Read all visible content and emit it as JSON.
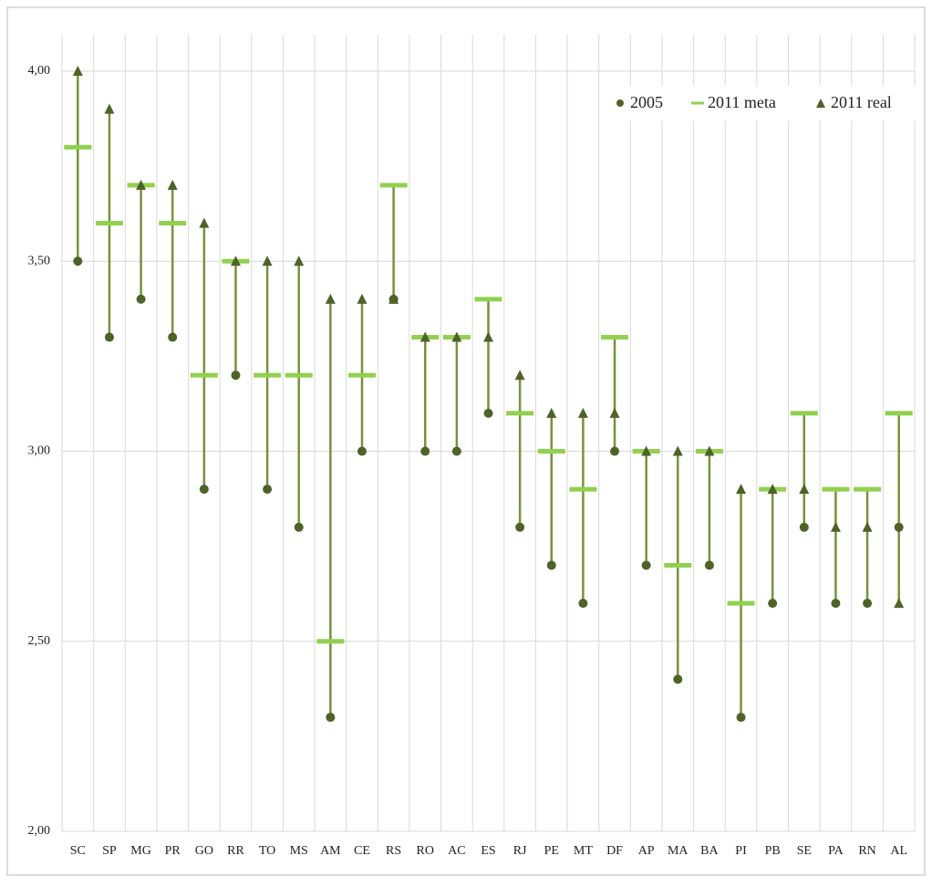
{
  "chart_data": {
    "type": "range",
    "categories": [
      "SC",
      "SP",
      "MG",
      "PR",
      "GO",
      "RR",
      "TO",
      "MS",
      "AM",
      "CE",
      "RS",
      "RO",
      "AC",
      "ES",
      "RJ",
      "PE",
      "MT",
      "DF",
      "AP",
      "MA",
      "BA",
      "PI",
      "PB",
      "SE",
      "PA",
      "RN",
      "AL"
    ],
    "series": [
      {
        "name": "2005",
        "color": "#4f6228",
        "marker": "circle",
        "values": [
          3.5,
          3.3,
          3.4,
          3.3,
          2.9,
          3.2,
          2.9,
          2.8,
          2.3,
          3.0,
          3.4,
          3.0,
          3.0,
          3.1,
          2.8,
          2.7,
          2.6,
          3.0,
          2.7,
          2.4,
          2.7,
          2.3,
          2.6,
          2.8,
          2.6,
          2.6,
          2.8
        ]
      },
      {
        "name": "2011 meta",
        "color": "#92d050",
        "marker": "dash",
        "values": [
          3.8,
          3.6,
          3.7,
          3.6,
          3.2,
          3.5,
          3.2,
          3.2,
          2.5,
          3.2,
          3.7,
          3.3,
          3.3,
          3.4,
          3.1,
          3.0,
          2.9,
          3.3,
          3.0,
          2.7,
          3.0,
          2.6,
          2.9,
          3.1,
          2.9,
          2.9,
          3.1
        ]
      },
      {
        "name": "2011 real",
        "color": "#4f6228",
        "marker": "triangle",
        "values": [
          4.0,
          3.9,
          3.7,
          3.7,
          3.6,
          3.5,
          3.5,
          3.5,
          3.4,
          3.4,
          3.4,
          3.3,
          3.3,
          3.3,
          3.2,
          3.1,
          3.1,
          3.1,
          3.0,
          3.0,
          3.0,
          2.9,
          2.9,
          2.9,
          2.8,
          2.8,
          2.6
        ]
      }
    ],
    "line_color": "#76923c",
    "ylim": [
      2.0,
      4.0
    ],
    "yticks": [
      {
        "value": 2.0,
        "label": "2,00"
      },
      {
        "value": 2.5,
        "label": "2,50"
      },
      {
        "value": 3.0,
        "label": "3,00"
      },
      {
        "value": 3.5,
        "label": "3,50"
      },
      {
        "value": 4.0,
        "label": "4,00"
      }
    ],
    "grid": true,
    "legend": "top-right"
  }
}
